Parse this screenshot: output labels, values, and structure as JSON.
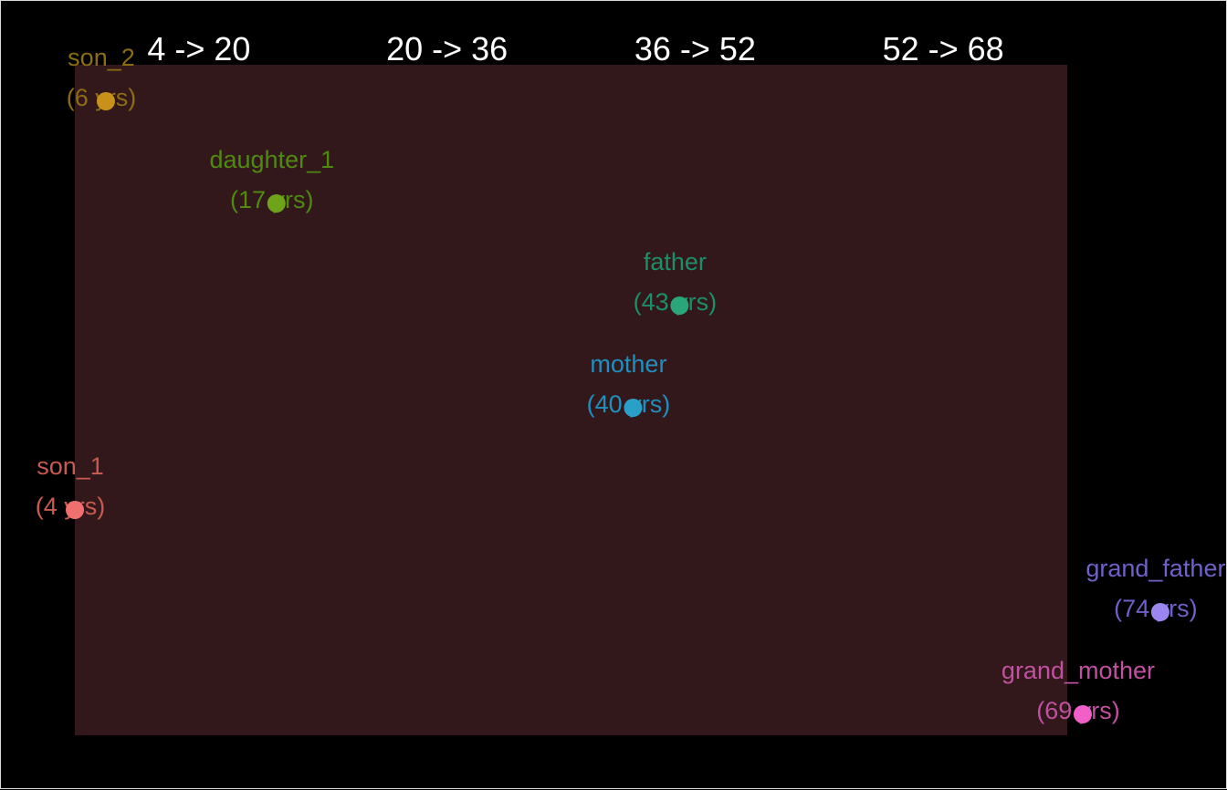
{
  "chart_data": {
    "type": "scatter",
    "title": "",
    "xlabel": "",
    "ylabel": "",
    "x_domain": [
      4,
      68
    ],
    "age_ranges": [
      {
        "label": "4 -> 20",
        "from": 4,
        "to": 20
      },
      {
        "label": "20 -> 36",
        "from": 20,
        "to": 36
      },
      {
        "label": "36 -> 52",
        "from": 36,
        "to": 52
      },
      {
        "label": "52 -> 68",
        "from": 52,
        "to": 68
      }
    ],
    "colors": {
      "background": "#000000",
      "panel": "#32181a",
      "range_label": "#ffffff"
    },
    "points": [
      {
        "name": "son_2",
        "age": 6,
        "age_label": "(6 yrs)",
        "row": 0,
        "color": "#c8921a",
        "text_color": "#8c6d12"
      },
      {
        "name": "daughter_1",
        "age": 17,
        "age_label": "(17 yrs)",
        "row": 1,
        "color": "#6ea31a",
        "text_color": "#4f8a10"
      },
      {
        "name": "father",
        "age": 43,
        "age_label": "(43 yrs)",
        "row": 2,
        "color": "#2aa77a",
        "text_color": "#1a8f6a"
      },
      {
        "name": "mother",
        "age": 40,
        "age_label": "(40 yrs)",
        "row": 3,
        "color": "#2aa0c8",
        "text_color": "#1f8fbf"
      },
      {
        "name": "son_1",
        "age": 4,
        "age_label": "(4 yrs)",
        "row": 4,
        "color": "#f07070",
        "text_color": "#c85a50"
      },
      {
        "name": "grand_father",
        "age": 74,
        "age_label": "(74 yrs)",
        "row": 5,
        "color": "#9b86f0",
        "text_color": "#7060c8"
      },
      {
        "name": "grand_mother",
        "age": 69,
        "age_label": "(69 yrs)",
        "row": 6,
        "color": "#f060c8",
        "text_color": "#c050a0"
      }
    ]
  }
}
